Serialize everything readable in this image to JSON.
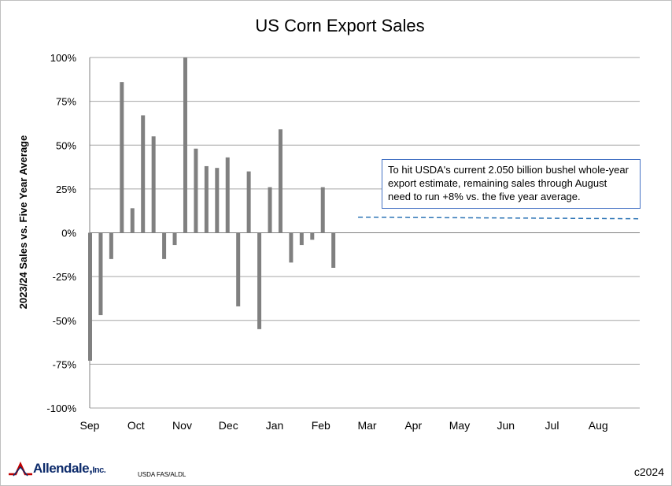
{
  "chart_data": {
    "type": "bar",
    "title": "US Corn Export Sales",
    "ylabel": "2023/24 Sales vs. Five Year Average",
    "xlabel": "",
    "ylim": [
      -100,
      100
    ],
    "y_ticks": [
      "100%",
      "75%",
      "50%",
      "25%",
      "0%",
      "-25%",
      "-50%",
      "-75%",
      "-100%"
    ],
    "x_ticks": [
      "Sep",
      "Oct",
      "Nov",
      "Dec",
      "Jan",
      "Feb",
      "Mar",
      "Apr",
      "May",
      "Jun",
      "Jul",
      "Aug"
    ],
    "grid": true,
    "weeks_per_year": 52,
    "series": [
      {
        "values": [
          -73,
          -47,
          -15,
          86,
          14,
          67,
          55,
          -15,
          -7,
          100,
          48,
          38,
          37,
          43,
          -42,
          35,
          -55,
          26,
          59,
          -17,
          -7,
          -4,
          26,
          -20
        ]
      }
    ],
    "reference_line": {
      "value": 8,
      "start_week": 25,
      "end_week": 52,
      "style": "dashed"
    },
    "bar_color": "#808080",
    "gridline_color": "#a6a6a6",
    "reference_color": "#2e75b6"
  },
  "annotation": "To hit USDA's current 2.050 billion bushel whole-year export estimate, remaining sales through August need to run +8% vs. the five year average.",
  "footer": {
    "logo_text": "Allendale,",
    "logo_suffix": "Inc.",
    "source": "USDA FAS/ALDL",
    "copyright": "c2024"
  }
}
